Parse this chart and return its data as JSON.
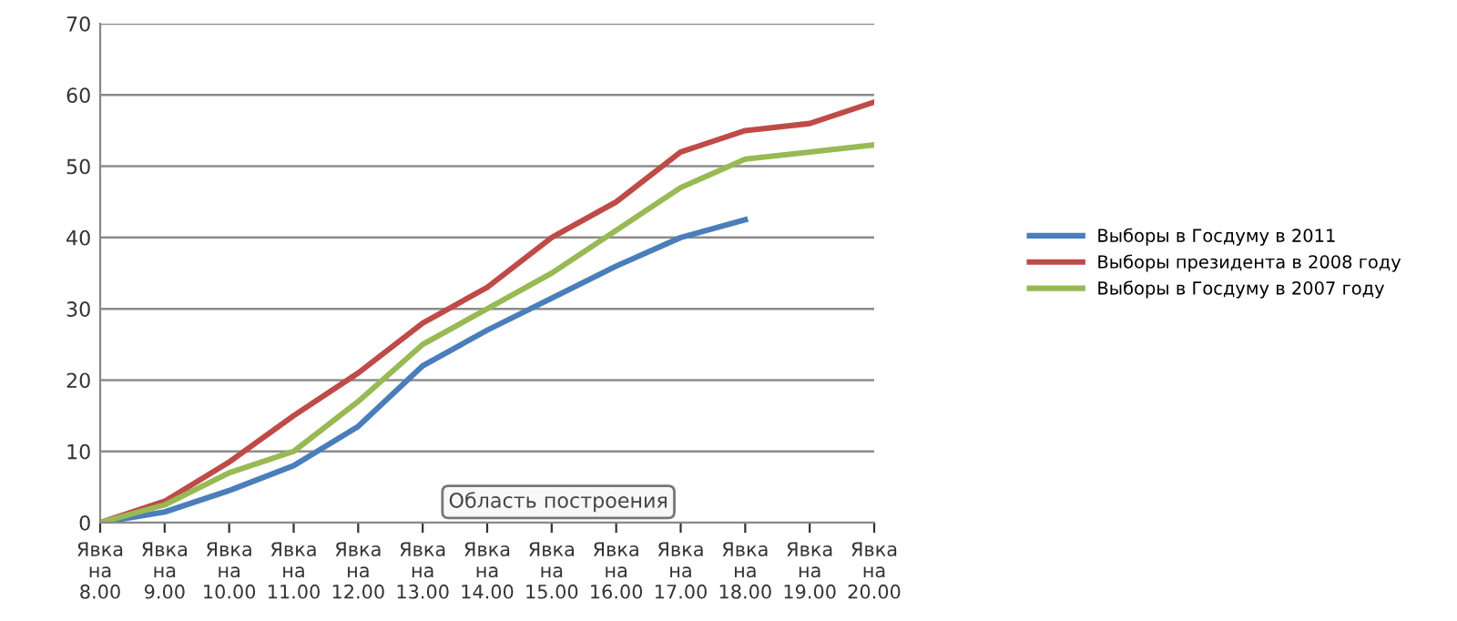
{
  "chart_data": {
    "type": "line",
    "categories": [
      "Явка\nна\n8.00",
      "Явка\nна\n9.00",
      "Явка\nна\n10.00",
      "Явка\nна\n11.00",
      "Явка\nна\n12.00",
      "Явка\nна\n13.00",
      "Явка\nна\n14.00",
      "Явка\nна\n15.00",
      "Явка\nна\n16.00",
      "Явка\nна\n17.00",
      "Явка\nна\n18.00",
      "Явка\nна\n19.00",
      "Явка\nна\n20.00"
    ],
    "series": [
      {
        "name": "Выборы в Госдуму в 2011",
        "color": "#4a7ebb",
        "values": [
          0,
          1.5,
          4.5,
          8,
          13.5,
          22,
          27,
          31.5,
          36,
          40,
          42.5,
          null,
          null
        ]
      },
      {
        "name": "Выборы президента в 2008 году",
        "color": "#be4b48",
        "values": [
          0,
          3,
          8.5,
          15,
          21,
          28,
          33,
          40,
          45,
          52,
          55,
          56,
          59
        ]
      },
      {
        "name": "Выборы в Госдуму в 2007 году",
        "color": "#98b954",
        "values": [
          0,
          2.5,
          7,
          10,
          17,
          25,
          30,
          35,
          41,
          47,
          51,
          52,
          53
        ]
      }
    ],
    "ylim": [
      0,
      70
    ],
    "yticks": [
      0,
      10,
      20,
      30,
      40,
      50,
      60,
      70
    ],
    "grid": "y",
    "legend": "right",
    "marker": "none",
    "line_style": "solid",
    "annotations": [
      "Область построения"
    ]
  }
}
